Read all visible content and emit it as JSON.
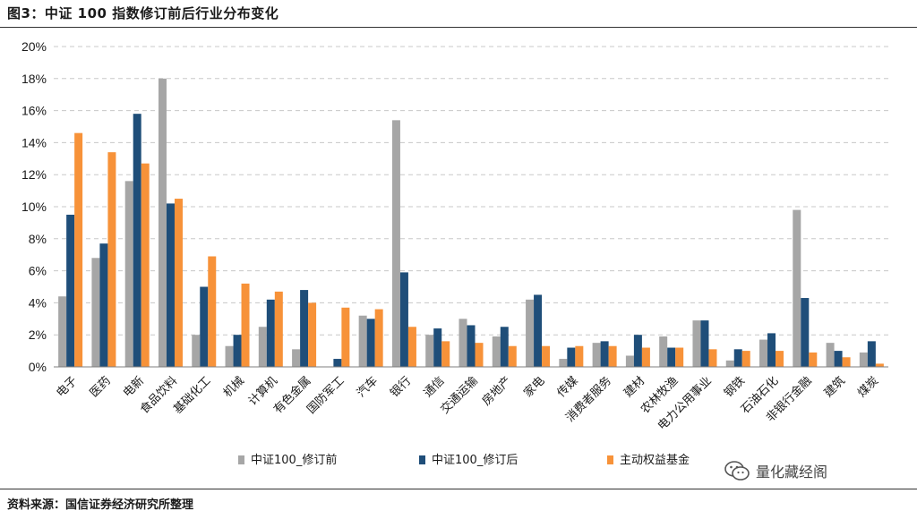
{
  "title": "图3：中证 100 指数修订前后行业分布变化",
  "source": "资料来源：国信证券经济研究所整理",
  "watermark": "量化藏经阁",
  "colors": {
    "before": "#a6a6a6",
    "after": "#1f4e79",
    "fund": "#f79239"
  },
  "chart_data": {
    "type": "bar",
    "ylim": [
      0,
      20
    ],
    "yticks": [
      "0%",
      "2%",
      "4%",
      "6%",
      "8%",
      "10%",
      "12%",
      "14%",
      "16%",
      "18%",
      "20%"
    ],
    "grid": true,
    "legend_position": "bottom",
    "categories": [
      "电子",
      "医药",
      "电新",
      "食品饮料",
      "基础化工",
      "机械",
      "计算机",
      "有色金属",
      "国防军工",
      "汽车",
      "银行",
      "通信",
      "交通运输",
      "房地产",
      "家电",
      "传媒",
      "消费者服务",
      "建材",
      "农林牧渔",
      "电力公用事业",
      "钢铁",
      "石油石化",
      "非银行金融",
      "建筑",
      "煤炭"
    ],
    "series": [
      {
        "name": "中证100_修订前",
        "values": [
          4.4,
          6.8,
          11.6,
          18.0,
          2.0,
          1.3,
          2.5,
          1.1,
          0.0,
          3.2,
          15.4,
          2.0,
          3.0,
          1.9,
          4.2,
          0.5,
          1.5,
          0.7,
          1.9,
          2.9,
          0.4,
          1.7,
          9.8,
          1.5,
          0.9
        ]
      },
      {
        "name": "中证100_修订后",
        "values": [
          9.5,
          7.7,
          15.8,
          10.2,
          5.0,
          2.0,
          4.2,
          4.8,
          0.5,
          3.0,
          5.9,
          2.4,
          2.6,
          2.5,
          4.5,
          1.2,
          1.6,
          2.0,
          1.2,
          2.9,
          1.1,
          2.1,
          4.3,
          1.0,
          1.6
        ]
      },
      {
        "name": "主动权益基金",
        "values": [
          14.6,
          13.4,
          12.7,
          10.5,
          6.9,
          5.2,
          4.7,
          4.0,
          3.7,
          3.6,
          2.5,
          1.6,
          1.5,
          1.3,
          1.3,
          1.3,
          1.3,
          1.2,
          1.2,
          1.1,
          1.0,
          1.0,
          0.9,
          0.6,
          0.2
        ]
      }
    ]
  }
}
